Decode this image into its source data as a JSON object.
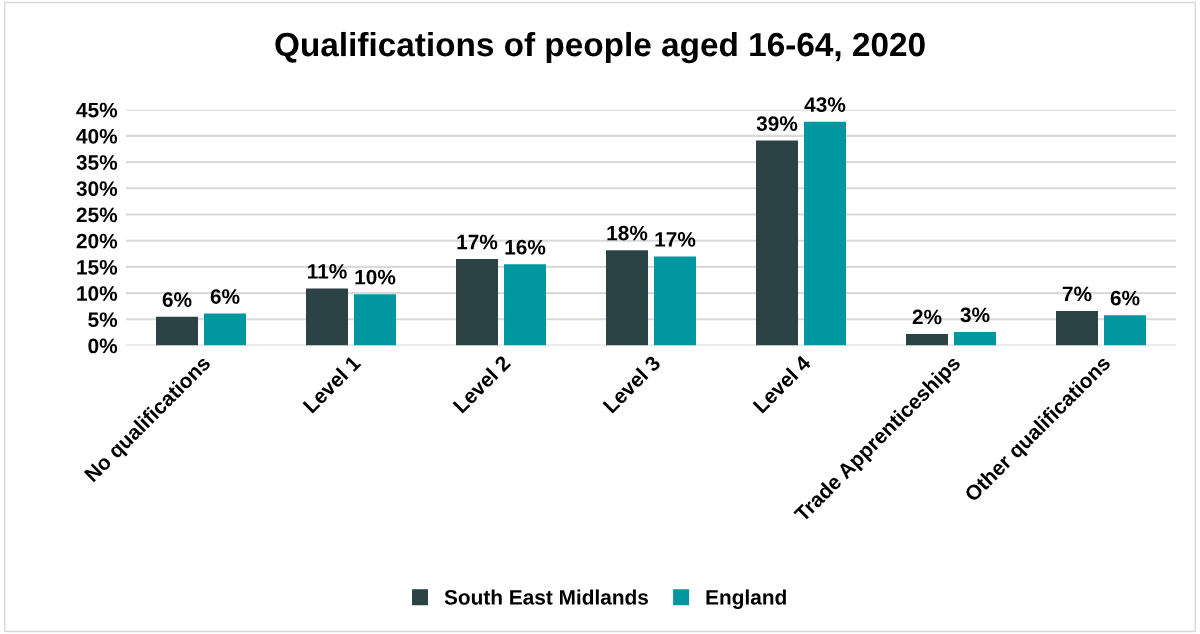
{
  "chart_data": {
    "type": "bar",
    "title": "Qualifications of people aged 16-64, 2020",
    "categories": [
      "No qualifications",
      "Level 1",
      "Level 2",
      "Level 3",
      "Level 4",
      "Trade Apprenticeships",
      "Other qualifications"
    ],
    "series": [
      {
        "name": "South East Midlands",
        "color": "#2b4345",
        "values": [
          5.5,
          10.9,
          16.5,
          18.2,
          39.1,
          2.2,
          6.6
        ],
        "value_labels": [
          "6%",
          "11%",
          "17%",
          "18%",
          "39%",
          "2%",
          "7%"
        ]
      },
      {
        "name": "England",
        "color": "#0097a0",
        "values": [
          6.1,
          9.8,
          15.5,
          17.0,
          42.7,
          2.6,
          5.8
        ],
        "value_labels": [
          "6%",
          "10%",
          "16%",
          "17%",
          "43%",
          "3%",
          "6%"
        ]
      }
    ],
    "ylim": [
      0,
      45
    ],
    "yticks": [
      {
        "value": 0,
        "label": "0%"
      },
      {
        "value": 5,
        "label": "5%"
      },
      {
        "value": 10,
        "label": "10%"
      },
      {
        "value": 15,
        "label": "15%"
      },
      {
        "value": 20,
        "label": "20%"
      },
      {
        "value": 25,
        "label": "25%"
      },
      {
        "value": 30,
        "label": "30%"
      },
      {
        "value": 35,
        "label": "35%"
      },
      {
        "value": 40,
        "label": "40%"
      },
      {
        "value": 45,
        "label": "45%"
      }
    ],
    "grid": "y",
    "legend": "bottom"
  }
}
